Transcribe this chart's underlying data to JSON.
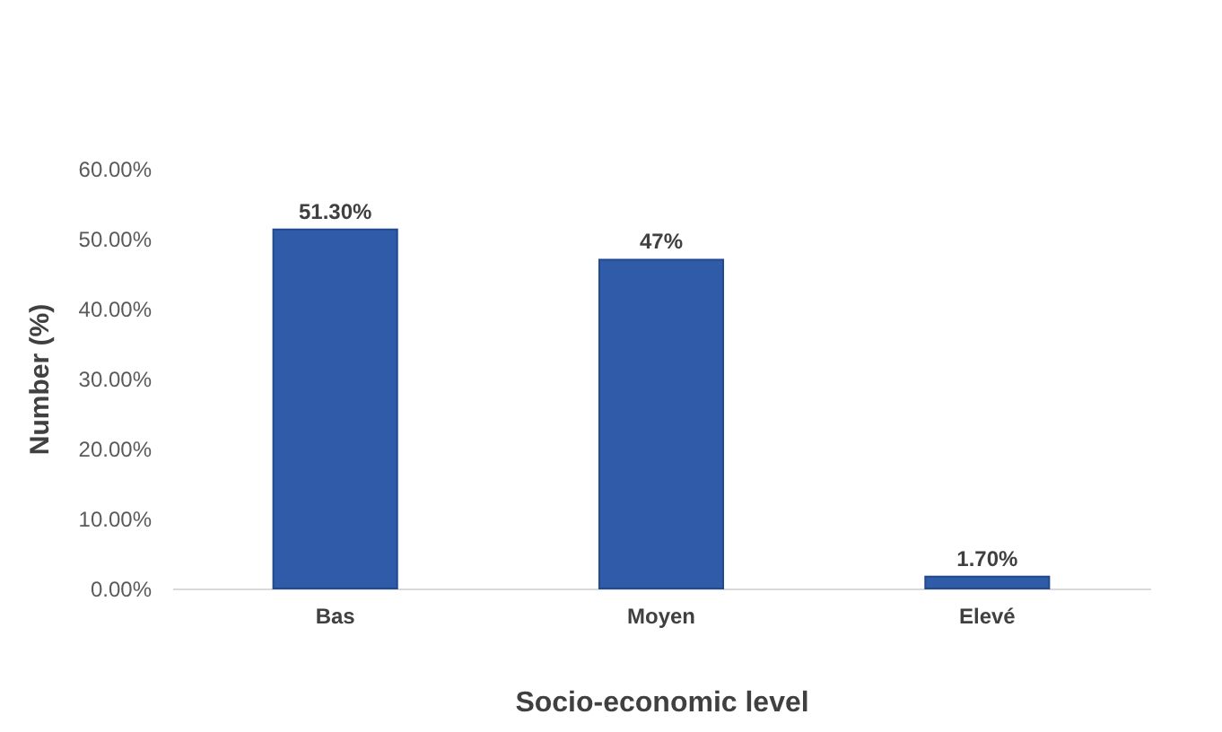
{
  "chart_data": {
    "type": "bar",
    "xlabel": "Socio-economic level",
    "ylabel": "Number (%)",
    "categories": [
      "Bas",
      "Moyen",
      "Elevé"
    ],
    "values": [
      51.3,
      47,
      1.7
    ],
    "value_labels": [
      "51.30%",
      "47%",
      "1.70%"
    ],
    "color": "#2f5ba8",
    "ylim": [
      0,
      60
    ],
    "yticks": [
      {
        "value": 0,
        "label": "0.00%"
      },
      {
        "value": 10,
        "label": "10.00%"
      },
      {
        "value": 20,
        "label": "20.00%"
      },
      {
        "value": 30,
        "label": "30.00%"
      },
      {
        "value": 40,
        "label": "40.00%"
      },
      {
        "value": 50,
        "label": "50.00%"
      },
      {
        "value": 60,
        "label": "60.00%"
      }
    ],
    "grid": false
  }
}
